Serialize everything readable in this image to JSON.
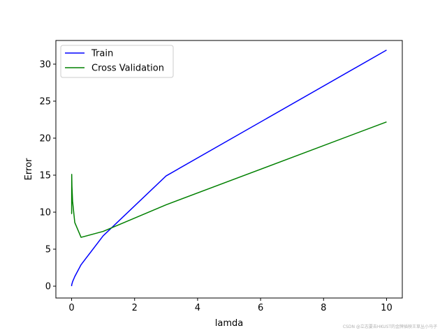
{
  "chart_data": {
    "type": "line",
    "title": "",
    "xlabel": "lamda",
    "ylabel": "Error",
    "xlim": [
      -0.5,
      10.5
    ],
    "ylim": [
      -1.6,
      33.2
    ],
    "xticks": [
      0,
      2,
      4,
      6,
      8,
      10
    ],
    "yticks": [
      0,
      5,
      10,
      15,
      20,
      25,
      30
    ],
    "grid": false,
    "legend": "top-left",
    "series": [
      {
        "name": "Train",
        "color": "#0000ff",
        "x": [
          0,
          0.001,
          0.003,
          0.01,
          0.03,
          0.1,
          0.3,
          1,
          3,
          10
        ],
        "y": [
          0.0,
          0.1,
          0.2,
          0.3,
          0.6,
          1.3,
          2.9,
          6.8,
          14.9,
          31.9
        ]
      },
      {
        "name": "Cross Validation",
        "color": "#008000",
        "x": [
          0,
          0.001,
          0.003,
          0.01,
          0.03,
          0.1,
          0.3,
          1,
          3,
          10
        ],
        "y": [
          10.0,
          9.8,
          15.1,
          13.5,
          11.5,
          8.6,
          6.6,
          7.4,
          11.0,
          22.2
        ]
      }
    ]
  },
  "watermark": "CSDN @立志要去HKUST的金牌插秧王草丛小马子"
}
